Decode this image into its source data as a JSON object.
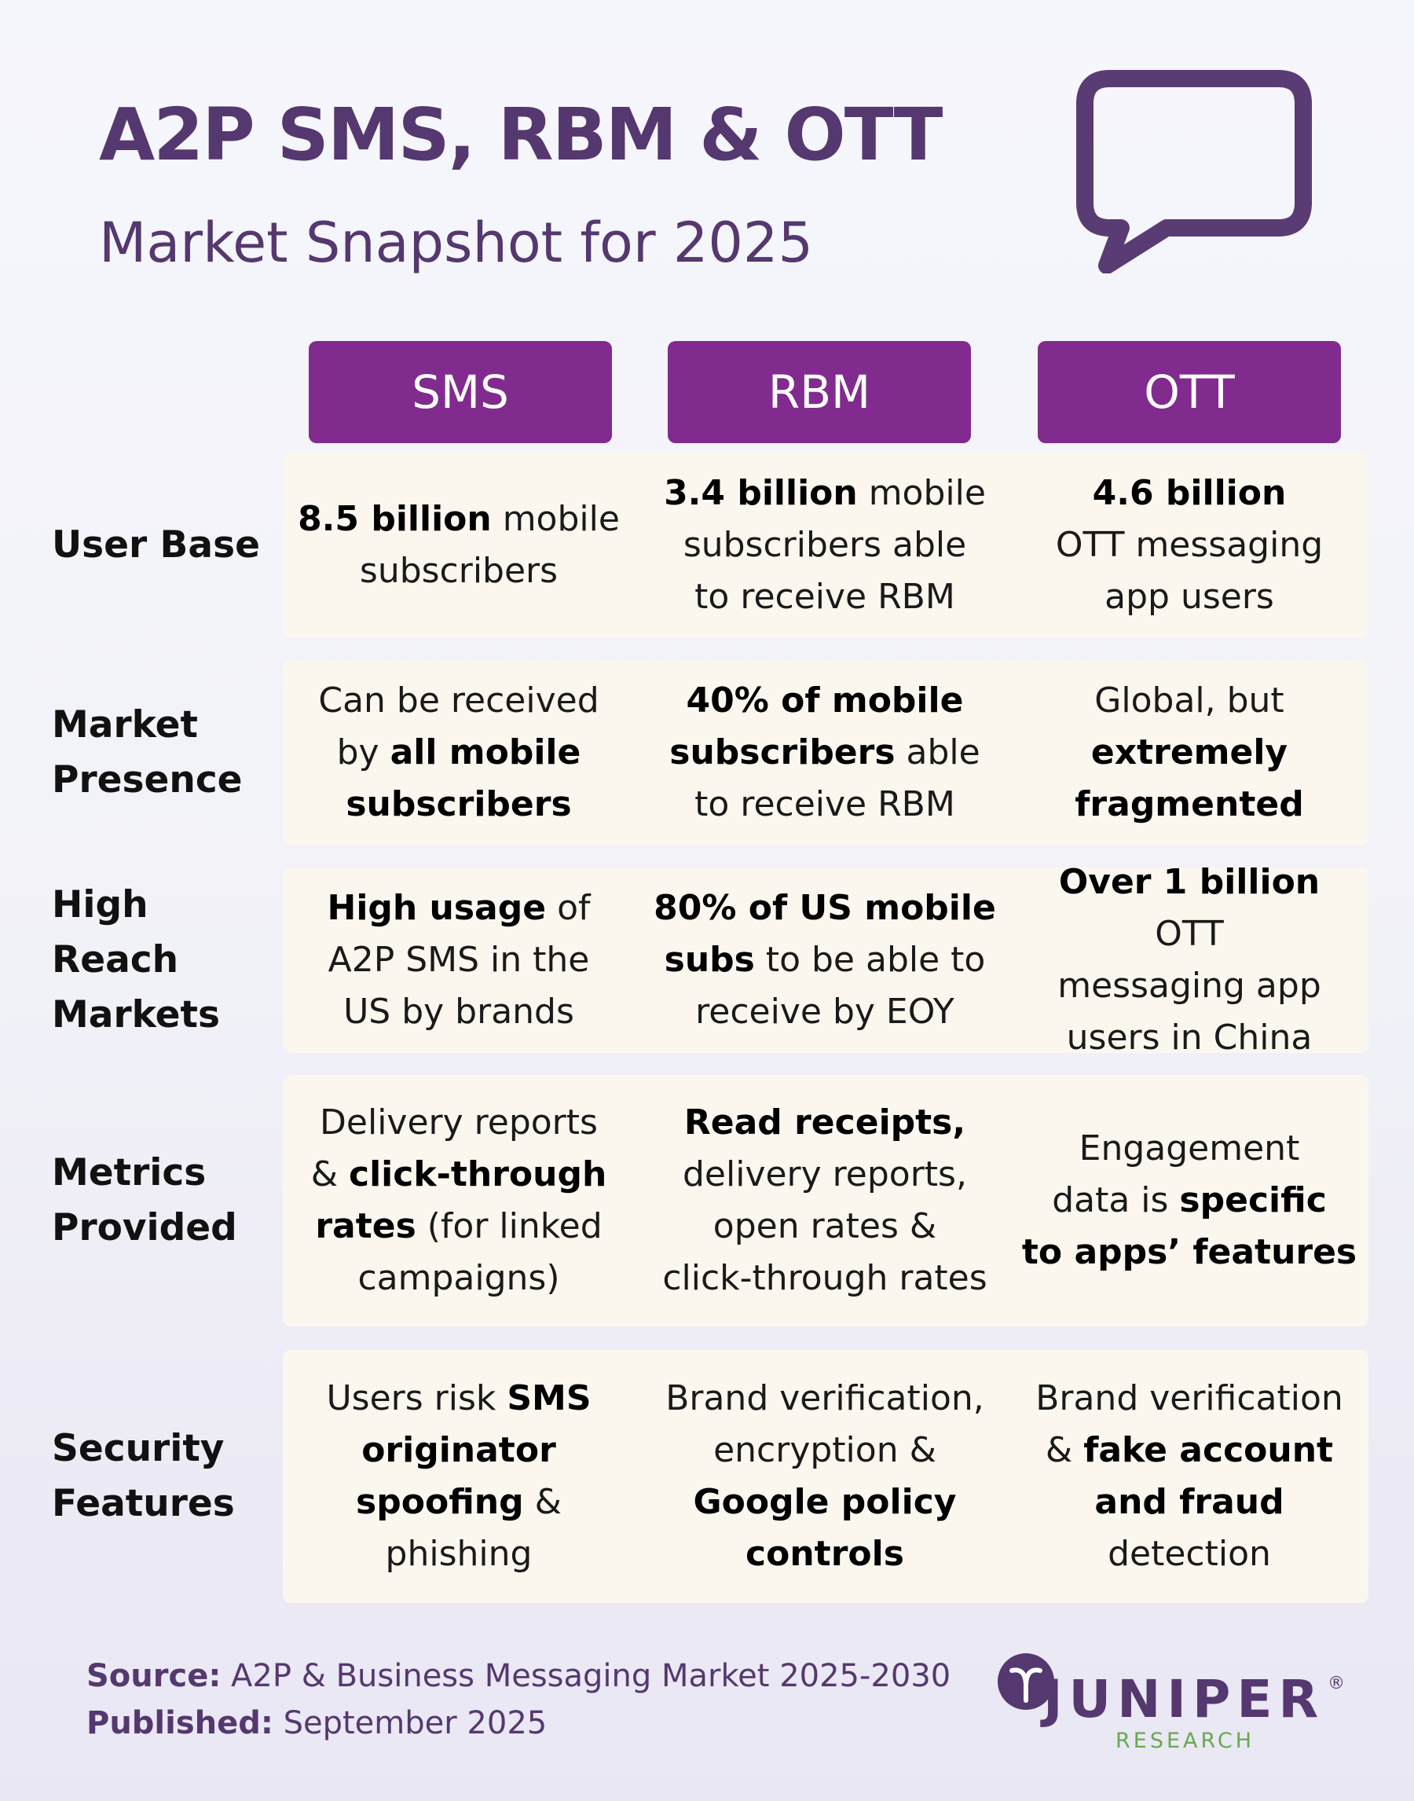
{
  "header": {
    "title": "A2P SMS, RBM & OTT",
    "subtitle": "Market Snapshot for 2025"
  },
  "columns": [
    "SMS",
    "RBM",
    "OTT"
  ],
  "rows": [
    {
      "label": "User Base",
      "cells": [
        "<b>8.5 billion</b> mobile<br>subscribers",
        "<b>3.4 billion</b> mobile<br>subscribers able<br>to receive RBM",
        "<b>4.6 billion</b><br>OTT messaging<br>app users"
      ]
    },
    {
      "label": "Market Presence",
      "cells": [
        "Can be received<br>by <b>all mobile<br>subscribers</b>",
        "<b>40% of mobile<br>subscribers</b> able<br>to receive RBM",
        "Global, but<br><b>extremely<br>fragmented</b>"
      ]
    },
    {
      "label": "High Reach Markets",
      "cells": [
        "<b>High usage</b> of<br>A2P SMS in the<br>US by brands",
        "<b>80% of US mobile<br>subs</b> to be able to<br>receive by EOY",
        "<b>Over 1 billion</b> OTT<br>messaging app<br>users in China"
      ]
    },
    {
      "label": "Metrics Provided",
      "cells": [
        "Delivery reports<br>&amp; <b>click-through<br>rates</b> (for linked<br>campaigns)",
        "<b>Read receipts,</b><br>delivery reports,<br>open rates &amp;<br>click-through rates",
        "Engagement<br>data is <b>specific<br>to apps’ features</b>"
      ]
    },
    {
      "label": "Security Features",
      "cells": [
        "Users risk <b>SMS<br>originator<br>spoofing</b> &amp;<br>phishing",
        "Brand verification,<br>encryption &amp;<br><b>Google policy<br>controls</b>",
        "Brand verification<br>&amp; <b>fake account<br>and fraud</b><br>detection"
      ]
    }
  ],
  "footer": {
    "source_label": "Source:",
    "source_text": "A2P & Business Messaging Market 2025-2030",
    "published_label": "Published:",
    "published_text": "September 2025"
  },
  "logo": {
    "name": "JUNIPER",
    "sub": "RESEARCH",
    "registered": "®"
  },
  "colors": {
    "brand_purple": "#55386f",
    "header_purple": "#812b8f",
    "cell_bg": "#fbf7ef",
    "logo_green": "#6aa84f"
  }
}
